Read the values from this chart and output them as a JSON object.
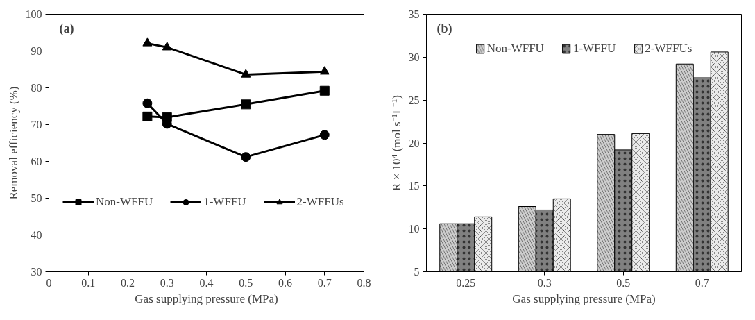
{
  "chart_data": [
    {
      "type": "line",
      "xlabel": "Gas supplying pressure (MPa)",
      "ylabel": "Removal efficiency (%)",
      "annotations": [
        "(a)"
      ],
      "x": [
        0.25,
        0.3,
        0.5,
        0.7
      ],
      "xlim": [
        0,
        0.8
      ],
      "xticks": [
        0,
        0.1,
        0.2,
        0.3,
        0.4,
        0.5,
        0.6,
        0.7,
        0.8
      ],
      "ylim": [
        30,
        100
      ],
      "yticks": [
        30,
        40,
        50,
        60,
        70,
        80,
        90,
        100
      ],
      "grid": false,
      "legend": "left",
      "line_style": "solid",
      "series": [
        {
          "name": "Non-WFFU",
          "color": "#000000",
          "marker": "square",
          "values": [
            72.2,
            72.0,
            75.5,
            79.2
          ]
        },
        {
          "name": "1-WFFU",
          "color": "#000000",
          "marker": "circle",
          "values": [
            75.8,
            70.2,
            61.2,
            67.2
          ]
        },
        {
          "name": "2-WFFUs",
          "color": "#000000",
          "marker": "triangle",
          "values": [
            92.1,
            91.0,
            83.6,
            84.4
          ]
        }
      ]
    },
    {
      "type": "bar",
      "xlabel": "Gas supplying pressure (MPa)",
      "ylabel": "R × 10⁴ (mol s⁻¹L⁻¹)",
      "annotations": [
        "(b)"
      ],
      "categories": [
        "0.25",
        "0.3",
        "0.5",
        "0.7"
      ],
      "ylim": [
        5,
        35
      ],
      "yticks": [
        5,
        10,
        15,
        20,
        25,
        30,
        35
      ],
      "grid": false,
      "legend": "top",
      "series": [
        {
          "name": "Non-WFFU",
          "color": "#cccccc",
          "values": [
            10.6,
            12.6,
            21.0,
            29.2
          ]
        },
        {
          "name": "1-WFFU",
          "color": "#808080",
          "values": [
            10.6,
            12.2,
            19.2,
            27.6
          ]
        },
        {
          "name": "2-WFFUs",
          "color": "#ebebeb",
          "values": [
            11.4,
            13.5,
            21.1,
            30.6
          ]
        }
      ]
    }
  ]
}
